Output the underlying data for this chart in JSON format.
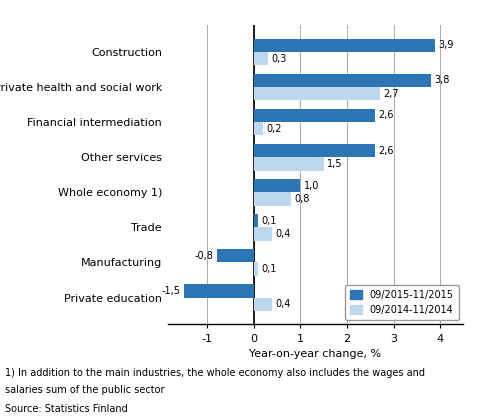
{
  "categories": [
    "Private education",
    "Manufacturing",
    "Trade",
    "Whole economy 1)",
    "Other services",
    "Financial intermediation",
    "Private health and social work",
    "Construction"
  ],
  "series_2015": [
    -1.5,
    -0.8,
    0.1,
    1.0,
    2.6,
    2.6,
    3.8,
    3.9
  ],
  "series_2014": [
    0.4,
    0.1,
    0.4,
    0.8,
    1.5,
    0.2,
    2.7,
    0.3
  ],
  "color_2015": "#2E75B6",
  "color_2014": "#BDD7EE",
  "xlabel": "Year-on-year change, %",
  "legend_2015": "09/2015-11/2015",
  "legend_2014": "09/2014-11/2014",
  "xlim": [
    -1.85,
    4.5
  ],
  "xticks": [
    -1,
    0,
    1,
    2,
    3,
    4
  ],
  "footnote1": "1) In addition to the main industries, the whole economy also includes the wages and",
  "footnote2": "salaries sum of the public sector",
  "source": "Source: Statistics Finland",
  "bar_height": 0.38
}
